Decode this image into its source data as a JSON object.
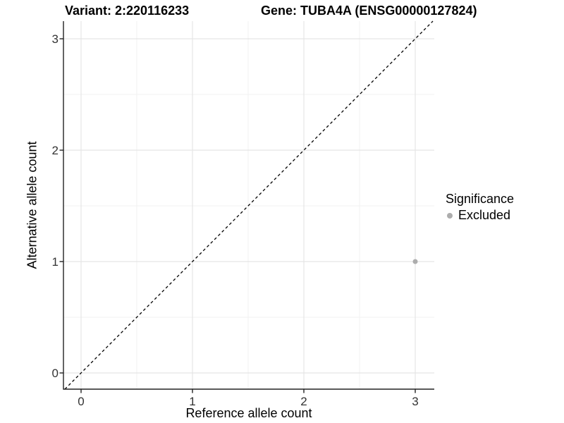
{
  "chart_data": {
    "type": "scatter",
    "titles": {
      "variant": "Variant: 2:220116233",
      "gene": "Gene: TUBA4A (ENSG00000127824)"
    },
    "xlabel": "Reference allele count",
    "ylabel": "Alternative allele count",
    "xlim": [
      -0.16,
      3.17
    ],
    "ylim": [
      -0.15,
      3.16
    ],
    "major_ticks": [
      0,
      1,
      2,
      3
    ],
    "minor_ticks": [
      0.5,
      1.5,
      2.5
    ],
    "grid": true,
    "points": [
      {
        "x": 3,
        "y": 1,
        "significance": "Excluded"
      }
    ],
    "identity_line": {
      "slope": 1,
      "intercept": 0,
      "style": "dashed"
    },
    "legend": {
      "title": "Significance",
      "position": "right",
      "items": [
        {
          "label": "Excluded",
          "color": "#adadad"
        }
      ]
    },
    "colors": {
      "background": "#ffffff",
      "point_excluded": "#adadad",
      "grid_major": "#e5e5e5",
      "grid_minor": "#f2f2f2",
      "axis_line": "#222222",
      "tick_label": "#333333",
      "identity_line": "#000000"
    }
  }
}
